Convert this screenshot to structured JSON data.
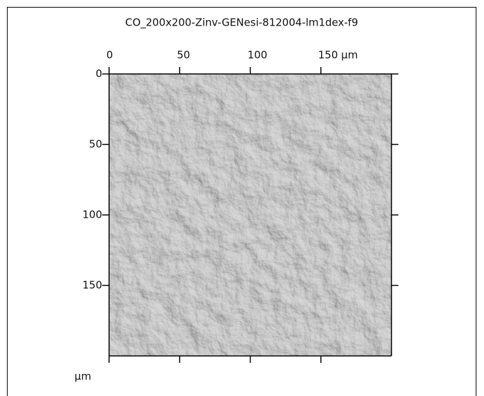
{
  "chart_data": {
    "type": "image",
    "title": "CO_200x200-Zinv-GENesi-812004-lm1dex-f9",
    "xlim": [
      0,
      200
    ],
    "ylim": [
      0,
      200
    ],
    "xticks": [
      0,
      50,
      100,
      {
        "value": 150,
        "label": "150 µm"
      }
    ],
    "yticks": [
      0,
      50,
      100,
      150
    ],
    "y_unit_label": "µm"
  }
}
